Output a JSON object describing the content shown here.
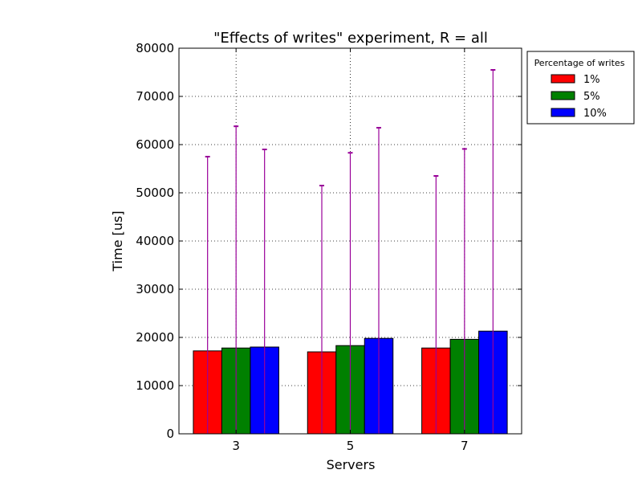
{
  "chart_data": {
    "type": "bar",
    "title": "\"Effects of writes\" experiment, R = all",
    "xlabel": "Servers",
    "ylabel": "Time [us]",
    "categories": [
      "3",
      "5",
      "7"
    ],
    "ylim": [
      0,
      80000
    ],
    "yticks": [
      "0",
      "10000",
      "20000",
      "30000",
      "40000",
      "50000",
      "60000",
      "70000",
      "80000"
    ],
    "grid": true,
    "legend": {
      "title": "Percentage of writes",
      "placement": "outside-right-top"
    },
    "series": [
      {
        "name": "1%",
        "color": "#ff0000",
        "values": [
          17200,
          17000,
          17800
        ],
        "error_upper": [
          57500,
          51500,
          53500
        ]
      },
      {
        "name": "5%",
        "color": "#008000",
        "values": [
          17800,
          18300,
          19600
        ],
        "error_upper": [
          63800,
          58300,
          59100
        ]
      },
      {
        "name": "10%",
        "color": "#0000ff",
        "values": [
          18000,
          19800,
          21300
        ],
        "error_upper": [
          59000,
          63500,
          75500
        ]
      }
    ],
    "error_bar_color": "#990099"
  }
}
